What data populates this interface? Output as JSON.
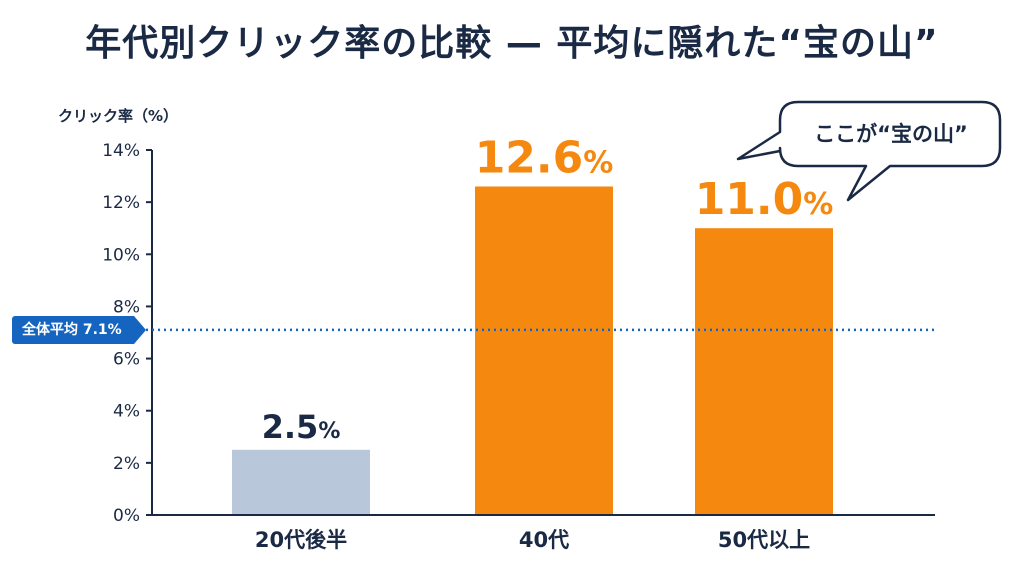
{
  "chart_data": {
    "type": "bar",
    "title": "年代別クリック率の比較 — 平均に隠れた“宝の山”",
    "ylabel": "クリック率（%）",
    "categories": [
      "20代後半",
      "40代",
      "50代以上"
    ],
    "values": [
      2.5,
      12.6,
      11.0
    ],
    "value_labels": [
      "2.5%",
      "12.6%",
      "11.0%"
    ],
    "bar_colors": [
      "#b8c7da",
      "#f5890f",
      "#f5890f"
    ],
    "label_colors": [
      "#1b2a44",
      "#f5890f",
      "#f5890f"
    ],
    "ylim": [
      0,
      14
    ],
    "yticks": [
      0,
      2,
      4,
      6,
      8,
      10,
      12,
      14
    ],
    "ytick_labels": [
      "0%",
      "2%",
      "4%",
      "6%",
      "8%",
      "10%",
      "12%",
      "14%"
    ],
    "grid": false,
    "average": {
      "value": 7.1,
      "label": "全体平均 7.1%",
      "color": "#1565c0"
    },
    "annotation": {
      "text": "ここが“宝の山”",
      "target": "40代・50代以上"
    }
  }
}
